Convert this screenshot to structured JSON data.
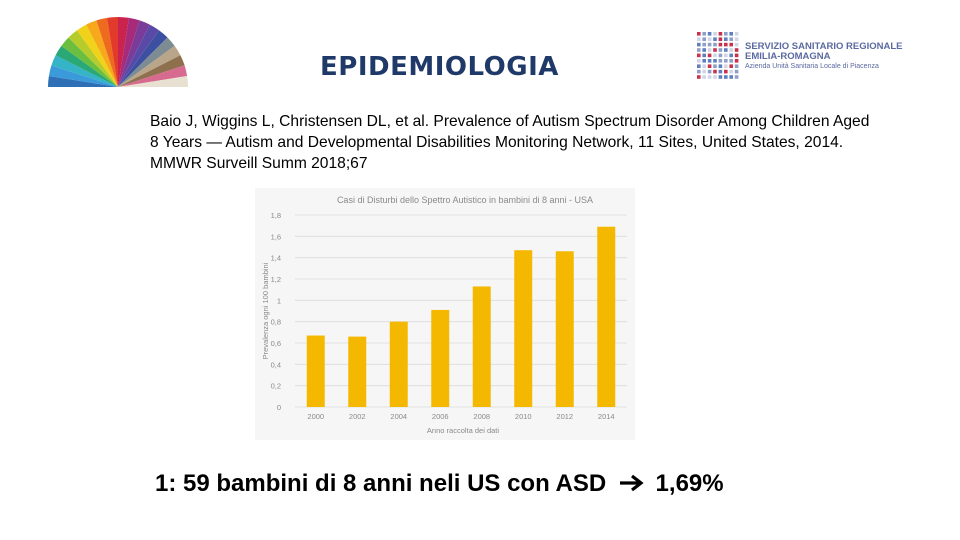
{
  "header": {
    "title": "EPIDEMIOLOGIA",
    "org": {
      "line1": "SERVIZIO SANITARIO REGIONALE",
      "line2": "EMILIA-ROMAGNA",
      "line3": "Azienda Unità Sanitaria Locale di Piacenza"
    }
  },
  "citation": "Baio J, Wiggins L, Christensen DL, et al. Prevalence of Autism Spectrum Disorder Among Children Aged 8 Years — Autism and Developmental Disabilities Monitoring Network, 11 Sites, United States, 2014. MMWR Surveill Summ 2018;67",
  "summary": {
    "text_before": "1: 59 bambini di 8 anni neli US con ASD",
    "arrow_icon": "right-arrow-icon",
    "text_after": "1,69%"
  },
  "chart_data": {
    "type": "bar",
    "title": "Casi di Disturbi dello Spettro Autistico in bambini di 8 anni - USA",
    "xlabel": "Anno raccolta dei dati",
    "ylabel": "Prevalenza ogni 100 bambini",
    "categories": [
      "2000",
      "2002",
      "2004",
      "2006",
      "2008",
      "2010",
      "2012",
      "2014"
    ],
    "values": [
      0.67,
      0.66,
      0.8,
      0.91,
      1.13,
      1.47,
      1.46,
      1.69
    ],
    "yticks": [
      "0",
      "0,2",
      "0,4",
      "0,6",
      "0,8",
      "1",
      "1,2",
      "1,4",
      "1,6",
      "1,8"
    ],
    "ylim": [
      0,
      1.8
    ],
    "grid": true,
    "bar_color": "#f5b800"
  }
}
